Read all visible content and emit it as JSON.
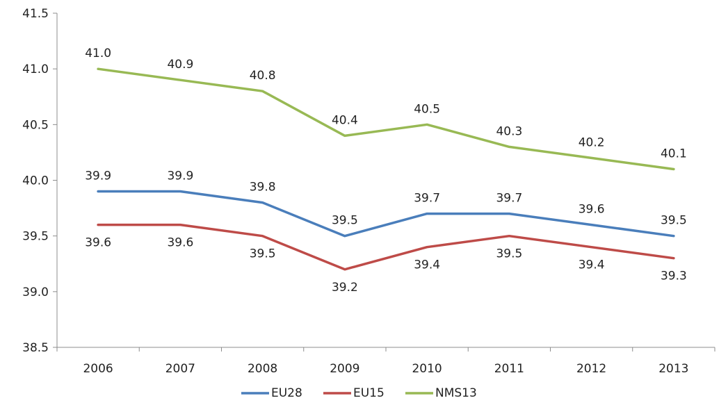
{
  "chart_data": {
    "type": "line",
    "title": "",
    "xlabel": "",
    "ylabel": "",
    "categories": [
      "2006",
      "2007",
      "2008",
      "2009",
      "2010",
      "2011",
      "2012",
      "2013"
    ],
    "ylim": [
      38.5,
      41.5
    ],
    "yticks": [
      "38.5",
      "39.0",
      "39.5",
      "40.0",
      "40.5",
      "41.0",
      "41.5"
    ],
    "grid": false,
    "legend_position": "bottom",
    "series": [
      {
        "name": "EU28",
        "color": "#4a7ebb",
        "values": [
          39.9,
          39.9,
          39.8,
          39.5,
          39.7,
          39.7,
          39.6,
          39.5
        ],
        "labels": [
          "39.9",
          "39.9",
          "39.8",
          "39.5",
          "39.7",
          "39.7",
          "39.6",
          "39.5"
        ],
        "label_side": "above"
      },
      {
        "name": "EU15",
        "color": "#be4b48",
        "values": [
          39.6,
          39.6,
          39.5,
          39.2,
          39.4,
          39.5,
          39.4,
          39.3
        ],
        "labels": [
          "39.6",
          "39.6",
          "39.5",
          "39.2",
          "39.4",
          "39.5",
          "39.4",
          "39.3"
        ],
        "label_side": "below"
      },
      {
        "name": "NMS13",
        "color": "#98b954",
        "values": [
          41.0,
          40.9,
          40.8,
          40.4,
          40.5,
          40.3,
          40.2,
          40.1
        ],
        "labels": [
          "41.0",
          "40.9",
          "40.8",
          "40.4",
          "40.5",
          "40.3",
          "40.2",
          "40.1"
        ],
        "label_side": "above"
      }
    ]
  }
}
